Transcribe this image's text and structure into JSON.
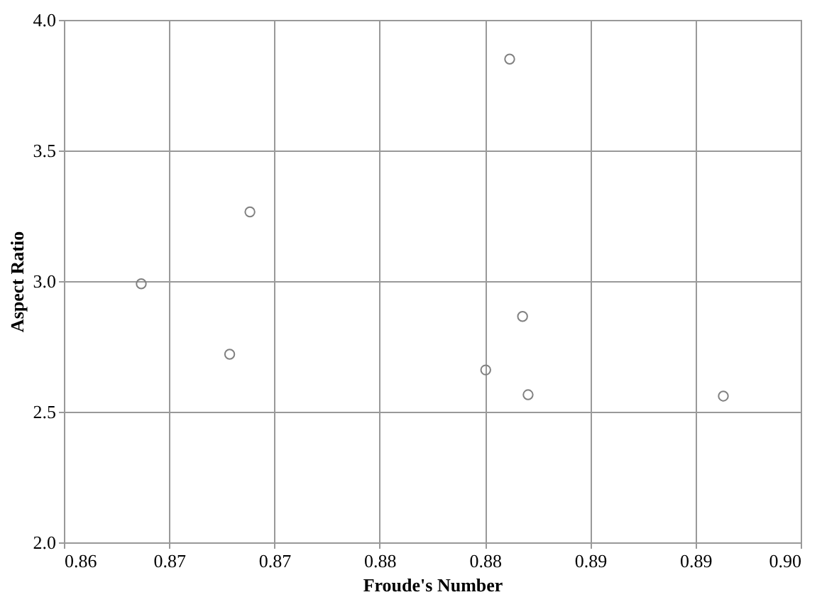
{
  "chart_data": {
    "type": "scatter",
    "xlabel": "Froude's Number",
    "ylabel": "Aspect Ratio",
    "x": [
      0.8642,
      0.8701,
      0.869,
      0.8842,
      0.8849,
      0.8829,
      0.8852,
      0.8958
    ],
    "series": [
      {
        "color": "#808080",
        "values": [
          2.99,
          3.265,
          2.72,
          3.85,
          2.865,
          2.66,
          2.565,
          2.56
        ]
      }
    ],
    "xlim": [
      0.86,
      0.9
    ],
    "xticks": [
      0.86,
      {
        "value": 0.865714,
        "label": "0.87"
      },
      {
        "value": 0.871429,
        "label": "0.87"
      },
      {
        "value": 0.877143,
        "label": "0.88"
      },
      {
        "value": 0.882857,
        "label": "0.88"
      },
      {
        "value": 0.888571,
        "label": "0.89"
      },
      {
        "value": 0.894286,
        "label": "0.89"
      },
      {
        "value": 0.9,
        "label": "0.90"
      }
    ],
    "ylim": [
      2.0,
      4.0
    ],
    "yticks": [
      {
        "value": 2.0,
        "label": "2.0"
      },
      2.5,
      {
        "value": 3.0,
        "label": "3.0"
      },
      3.5,
      {
        "value": 4.0,
        "label": "4.0"
      }
    ],
    "grid": true,
    "marker": "circle"
  }
}
